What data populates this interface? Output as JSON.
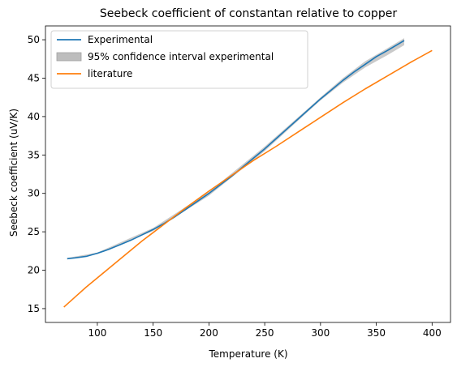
{
  "chart_data": {
    "type": "line",
    "title": "Seebeck coefficient of constantan relative to copper",
    "xlabel": "Temperature (K)",
    "ylabel": "Seebeck coefficient (uV/K)",
    "xlim": [
      53.5,
      416.5
    ],
    "ylim": [
      13.2,
      51.8
    ],
    "xticks": [
      100,
      150,
      200,
      250,
      300,
      350,
      400
    ],
    "yticks": [
      15,
      20,
      25,
      30,
      35,
      40,
      45,
      50
    ],
    "grid": false,
    "legend_position": "top-left",
    "series": [
      {
        "name": "Experimental",
        "kind": "line",
        "color": "#1f77b4",
        "x": [
          73,
          80,
          90,
          100,
          110,
          120,
          130,
          140,
          150,
          160,
          170,
          180,
          190,
          200,
          210,
          220,
          230,
          240,
          250,
          260,
          270,
          280,
          290,
          300,
          310,
          320,
          330,
          340,
          350,
          360,
          375
        ],
        "y": [
          21.5,
          21.6,
          21.8,
          22.2,
          22.7,
          23.3,
          23.9,
          24.6,
          25.3,
          26.1,
          27.0,
          28.0,
          29.0,
          30.0,
          31.1,
          32.2,
          33.4,
          34.6,
          35.8,
          37.1,
          38.4,
          39.7,
          41.0,
          42.3,
          43.5,
          44.7,
          45.8,
          46.8,
          47.8,
          48.6,
          49.9
        ]
      },
      {
        "name": "95% confidence interval experimental",
        "kind": "band",
        "color": "#bdbdbd",
        "x": [
          73,
          100,
          150,
          200,
          250,
          290,
          300,
          320,
          340,
          360,
          375
        ],
        "lower": [
          21.4,
          22.1,
          25.1,
          29.7,
          35.5,
          40.8,
          42.1,
          44.4,
          46.4,
          48.0,
          49.3
        ],
        "upper": [
          21.6,
          22.3,
          25.5,
          30.2,
          36.1,
          41.2,
          42.5,
          45.0,
          47.2,
          48.9,
          50.2
        ]
      },
      {
        "name": "literature",
        "kind": "line",
        "color": "#ff7f0e",
        "x": [
          70,
          80,
          90,
          100,
          110,
          120,
          130,
          140,
          150,
          160,
          180,
          200,
          220,
          240,
          260,
          280,
          300,
          320,
          340,
          360,
          380,
          400
        ],
        "y": [
          15.2,
          16.5,
          17.8,
          19.0,
          20.2,
          21.4,
          22.6,
          23.8,
          24.9,
          26.0,
          28.2,
          30.3,
          32.3,
          34.3,
          36.1,
          38.0,
          39.9,
          41.8,
          43.6,
          45.3,
          47.0,
          48.6
        ]
      }
    ]
  }
}
